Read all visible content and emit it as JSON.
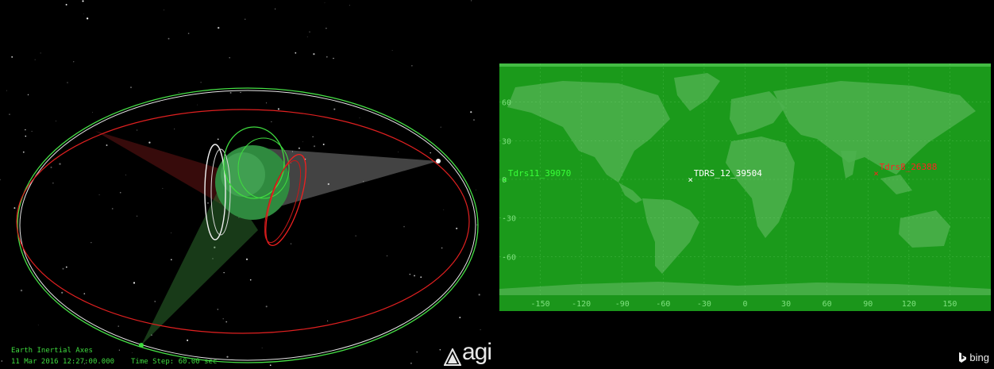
{
  "view3d": {
    "axes_label": "Earth Inertial Axes",
    "datetime": "11 Mar 2016 12:27:00.000",
    "time_step": "Time Step: 60.00 sec",
    "logo_text": "agi"
  },
  "view2d": {
    "lat_ticks": [
      "60",
      "30",
      "0",
      "-30",
      "-60"
    ],
    "lon_ticks": [
      "-150",
      "-120",
      "-90",
      "-60",
      "-30",
      "0",
      "30",
      "60",
      "90",
      "120",
      "150"
    ],
    "satellites": [
      {
        "label": "Tdrs11_39070",
        "color": "#39ff39"
      },
      {
        "label": "TDRS_12_39504",
        "color": "#ffffff"
      },
      {
        "label": "Tdrs8_26388",
        "color": "#ff2020"
      }
    ],
    "map_provider": "bing"
  },
  "colors": {
    "map_green": "#1fa81f",
    "land_green": "#58c458",
    "hud_green": "#3fdc3f"
  }
}
